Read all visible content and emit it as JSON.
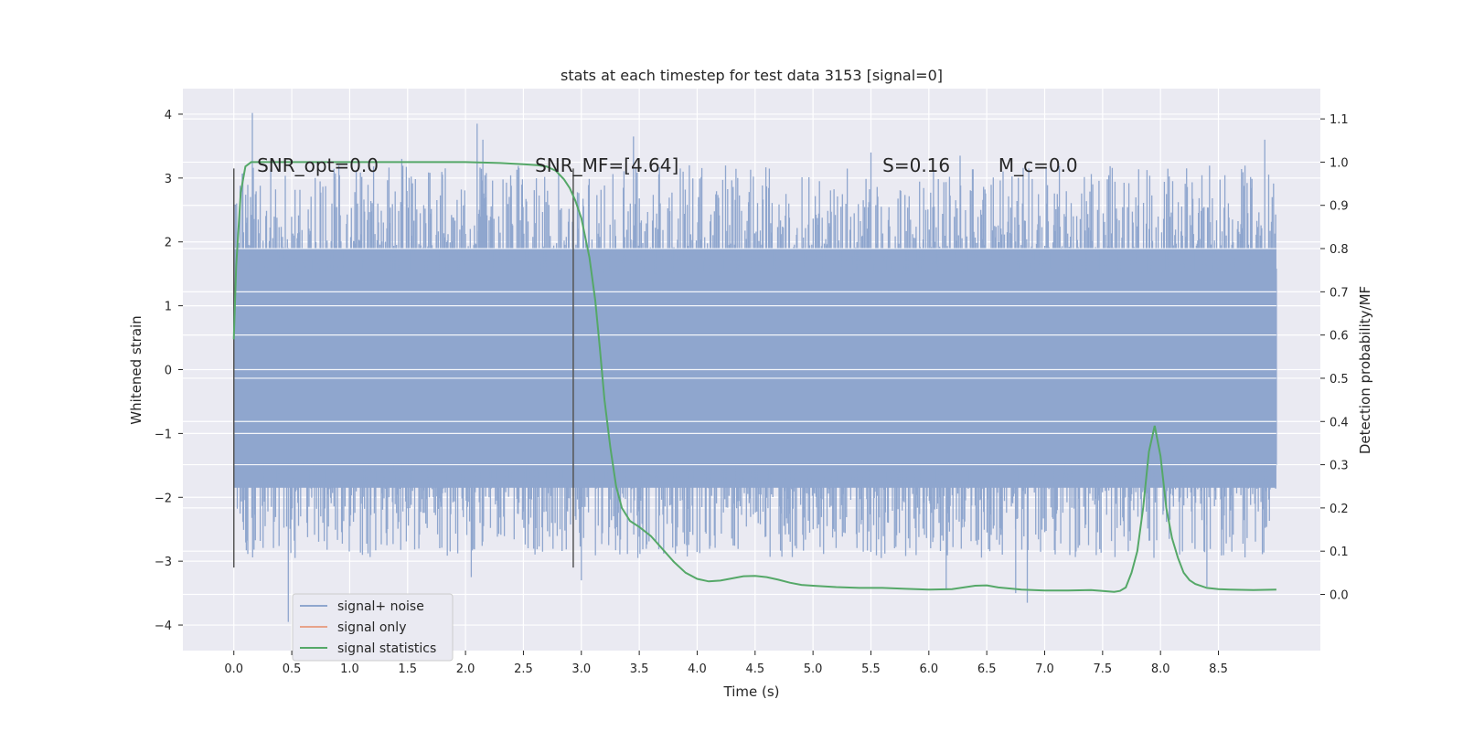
{
  "chart_data": {
    "type": "line",
    "title": "stats at each timestep for test data 3153 [signal=0]",
    "xlabel": "Time (s)",
    "ylabel": "Whitened strain",
    "ylabel_right": "Detection probability/MF",
    "xlim": [
      -0.44,
      9.38
    ],
    "ylim": [
      -4.4,
      4.4
    ],
    "ylim_right": [
      -0.13,
      1.17
    ],
    "x_ticks": [
      "0.0",
      "0.5",
      "1.0",
      "1.5",
      "2.0",
      "2.5",
      "3.0",
      "3.5",
      "4.0",
      "4.5",
      "5.0",
      "5.5",
      "6.0",
      "6.5",
      "7.0",
      "7.5",
      "8.0",
      "8.5"
    ],
    "y_ticks": [
      "4",
      "3",
      "2",
      "1",
      "0",
      "−1",
      "−2",
      "−3",
      "−4"
    ],
    "y_right_ticks": [
      "1.1",
      "1.0",
      "0.9",
      "0.8",
      "0.7",
      "0.6",
      "0.5",
      "0.4",
      "0.3",
      "0.2",
      "0.1",
      "0.0"
    ],
    "grid": true,
    "legend_position": "lower-left",
    "annotations": [
      {
        "text": "SNR_opt=0.0",
        "x": 0.2
      },
      {
        "text": "SNR_MF=[4.64]",
        "x": 2.6
      },
      {
        "text": "S=0.16",
        "x": 5.6
      },
      {
        "text": "M_c=0.0",
        "x": 6.6
      }
    ],
    "annotation_y": 3.1,
    "vlines": [
      {
        "x": 0.0,
        "y0": -3.1,
        "y1": 3.15
      },
      {
        "x": 2.93,
        "y0": -3.1,
        "y1": 3.15
      }
    ],
    "noise_band": {
      "x": [
        0.0,
        9.0
      ],
      "dense_low": -1.85,
      "dense_high": 1.9,
      "peak_max": 4.02,
      "peak_min": -3.95
    },
    "noise_spikes": [
      {
        "x": 0.16,
        "y": 4.02
      },
      {
        "x": 0.47,
        "y": -3.95
      },
      {
        "x": 1.45,
        "y": 3.3
      },
      {
        "x": 2.1,
        "y": 3.85
      },
      {
        "x": 2.15,
        "y": 3.6
      },
      {
        "x": 3.45,
        "y": 3.65
      },
      {
        "x": 3.0,
        "y": -3.3
      },
      {
        "x": 2.05,
        "y": -3.25
      },
      {
        "x": 5.5,
        "y": 3.4
      },
      {
        "x": 6.27,
        "y": 3.35
      },
      {
        "x": 6.85,
        "y": -3.65
      },
      {
        "x": 6.75,
        "y": -3.5
      },
      {
        "x": 8.9,
        "y": 3.6
      },
      {
        "x": 8.4,
        "y": -3.4
      },
      {
        "x": 6.15,
        "y": -3.45
      },
      {
        "x": 4.35,
        "y": 3.0
      }
    ],
    "series": [
      {
        "name": "signal+ noise",
        "color": "#8fa6ce"
      },
      {
        "name": "signal only",
        "color": "#e7a38a"
      },
      {
        "name": "signal statistics",
        "color": "#55a868",
        "x": [
          0.0,
          0.02,
          0.06,
          0.1,
          0.15,
          0.22,
          0.3,
          0.5,
          1.0,
          1.5,
          2.0,
          2.3,
          2.5,
          2.62,
          2.7,
          2.78,
          2.85,
          2.9,
          2.95,
          3.0,
          3.07,
          3.12,
          3.16,
          3.2,
          3.25,
          3.3,
          3.35,
          3.42,
          3.5,
          3.6,
          3.7,
          3.8,
          3.9,
          4.0,
          4.1,
          4.2,
          4.3,
          4.4,
          4.5,
          4.6,
          4.7,
          4.8,
          4.9,
          5.0,
          5.2,
          5.4,
          5.6,
          5.8,
          6.0,
          6.2,
          6.4,
          6.5,
          6.6,
          6.8,
          7.0,
          7.2,
          7.4,
          7.5,
          7.6,
          7.65,
          7.7,
          7.75,
          7.8,
          7.85,
          7.9,
          7.95,
          8.0,
          8.05,
          8.1,
          8.15,
          8.2,
          8.25,
          8.3,
          8.4,
          8.5,
          8.6,
          8.8,
          9.0
        ],
        "y": [
          0.59,
          0.76,
          0.93,
          0.99,
          1.0,
          1.0,
          1.0,
          1.0,
          1.0,
          1.0,
          1.0,
          0.998,
          0.995,
          0.993,
          0.99,
          0.98,
          0.96,
          0.94,
          0.91,
          0.87,
          0.78,
          0.68,
          0.57,
          0.45,
          0.34,
          0.25,
          0.2,
          0.17,
          0.156,
          0.135,
          0.105,
          0.075,
          0.05,
          0.036,
          0.03,
          0.032,
          0.037,
          0.042,
          0.043,
          0.04,
          0.034,
          0.027,
          0.022,
          0.02,
          0.017,
          0.015,
          0.015,
          0.013,
          0.011,
          0.012,
          0.02,
          0.021,
          0.016,
          0.011,
          0.009,
          0.009,
          0.01,
          0.008,
          0.006,
          0.008,
          0.016,
          0.05,
          0.1,
          0.2,
          0.33,
          0.39,
          0.32,
          0.2,
          0.13,
          0.085,
          0.05,
          0.033,
          0.024,
          0.015,
          0.012,
          0.011,
          0.01,
          0.011
        ]
      }
    ]
  }
}
